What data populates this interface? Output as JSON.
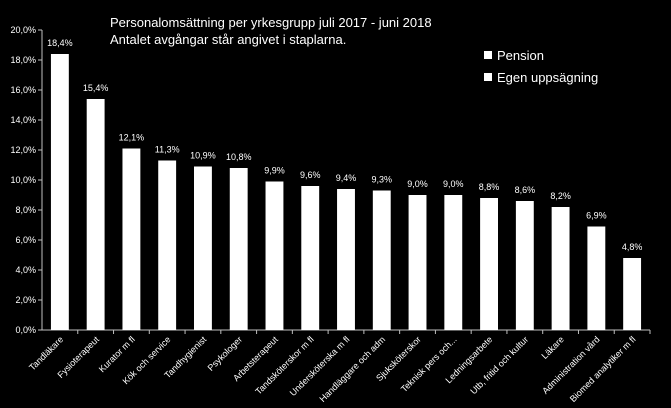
{
  "chart_data": {
    "type": "bar",
    "title": "Personalomsättning per yrkesgrupp juli 2017 - juni 2018",
    "subtitle": "Antalet avgångar står angivet  i staplarna.",
    "xlabel": "",
    "ylabel": "",
    "ylim": [
      0,
      20
    ],
    "yticks": [
      "0,0%",
      "2,0%",
      "4,0%",
      "6,0%",
      "8,0%",
      "10,0%",
      "12,0%",
      "14,0%",
      "16,0%",
      "18,0%",
      "20,0%"
    ],
    "categories": [
      "Tandläkare",
      "Fysioterapeut",
      "Kurator m fl",
      "Kök och service",
      "Tandhygienist",
      "Psykologer",
      "Arbetsterapeut",
      "Tandsköterskor m fl",
      "Undersköterska m fl",
      "Handläggare och adm",
      "Sjuksköterskor",
      "Teknisk pers och...",
      "Ledningsarbete",
      "Utb, fritid och kultur",
      "Läkare",
      "Administration vård",
      "Biomed analytiker m fl"
    ],
    "values": [
      18.4,
      15.4,
      12.1,
      11.3,
      10.9,
      10.8,
      9.9,
      9.6,
      9.4,
      9.3,
      9.0,
      9.0,
      8.8,
      8.6,
      8.2,
      6.9,
      4.8
    ],
    "data_labels": [
      "18,4%",
      "15,4%",
      "12,1%",
      "11,3%",
      "10,9%",
      "10,8%",
      "9,9%",
      "9,6%",
      "9,4%",
      "9,3%",
      "9,0%",
      "9,0%",
      "8,8%",
      "8,6%",
      "8,2%",
      "6,9%",
      "4,8%"
    ],
    "legend": [
      "Pension",
      "Egen uppsägning"
    ],
    "legend_position": "top-right",
    "grid": false,
    "colors": {
      "background": "#000000",
      "bars": "#ffffff",
      "text": "#ffffff",
      "axis": "#bfbfbf"
    }
  }
}
